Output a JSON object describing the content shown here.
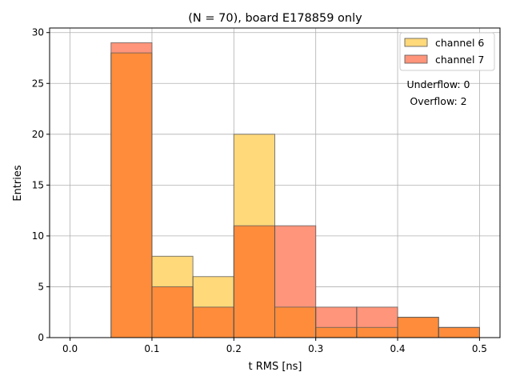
{
  "chart_data": {
    "type": "bar",
    "title": "(N = 70), board E178859 only",
    "xlabel": "t RMS [ns]",
    "ylabel": "Entries",
    "xlim": [
      -0.025,
      0.525
    ],
    "ylim": [
      0,
      30.45
    ],
    "bin_edges": [
      0.0,
      0.05,
      0.1,
      0.15,
      0.2,
      0.25,
      0.3,
      0.35,
      0.4,
      0.45,
      0.5
    ],
    "x_ticks": [
      0.0,
      0.1,
      0.2,
      0.3,
      0.4,
      0.5
    ],
    "x_tick_labels": [
      "0.0",
      "0.1",
      "0.2",
      "0.3",
      "0.4",
      "0.5"
    ],
    "y_ticks": [
      0,
      5,
      10,
      15,
      20,
      25,
      30
    ],
    "y_tick_labels": [
      "0",
      "5",
      "10",
      "15",
      "20",
      "25",
      "30"
    ],
    "grid": true,
    "legend_position": "top-right",
    "series": [
      {
        "name": "channel 6",
        "color": "#ffd97a",
        "values": [
          0,
          28,
          8,
          6,
          20,
          3,
          1,
          1,
          2,
          1
        ]
      },
      {
        "name": "channel 7",
        "color": "#ff957a",
        "values": [
          0,
          29,
          5,
          3,
          11,
          11,
          3,
          3,
          2,
          1
        ]
      }
    ],
    "overlap_color": "#ff8c3a",
    "annotations": [
      "Underflow: 0",
      "Overflow: 2"
    ]
  }
}
